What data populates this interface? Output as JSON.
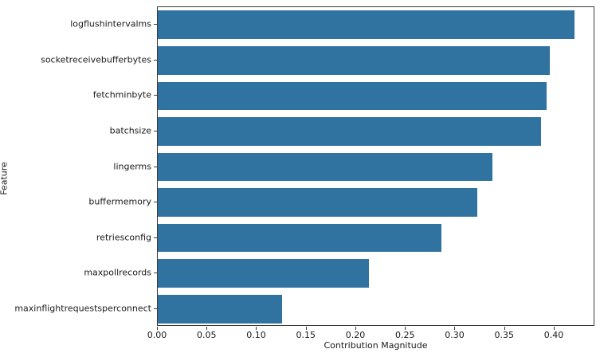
{
  "chart_data": {
    "type": "bar",
    "orientation": "horizontal",
    "xlabel": "Contribution Magnitude",
    "ylabel": "Feature",
    "categories": [
      "logflushintervalms",
      "socketreceivebufferbytes",
      "fetchminbyte",
      "batchsize",
      "lingerms",
      "buffermemory",
      "retriesconfig",
      "maxpollrecords",
      "maxinflightrequestsperconnect"
    ],
    "values": [
      0.42,
      0.395,
      0.392,
      0.386,
      0.337,
      0.322,
      0.286,
      0.213,
      0.125
    ],
    "xlim": [
      0,
      0.441
    ],
    "xticks": [
      0.0,
      0.05,
      0.1,
      0.15,
      0.2,
      0.25,
      0.3,
      0.35,
      0.4
    ],
    "xtick_labels": [
      "0.00",
      "0.05",
      "0.10",
      "0.15",
      "0.20",
      "0.25",
      "0.30",
      "0.35",
      "0.40"
    ],
    "bar_color": "#3173a0",
    "grid": false,
    "legend": "none",
    "title": ""
  }
}
